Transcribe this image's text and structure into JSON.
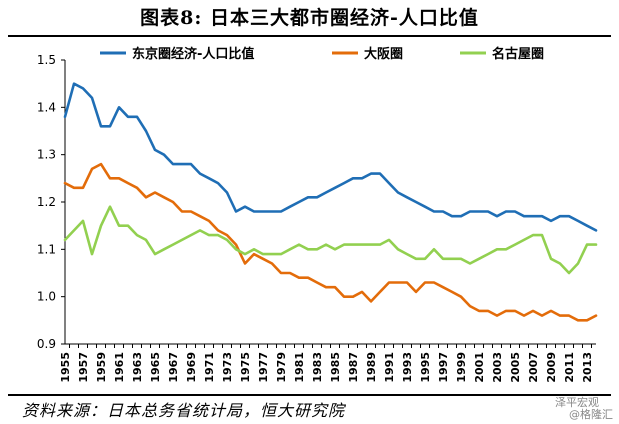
{
  "header": {
    "title": "图表8:  日本三大都市圈经济-人口比值"
  },
  "footer": {
    "source": "资料来源：日本总务省统计局，恒大研究院",
    "watermark_line1": "泽平宏观",
    "watermark_line2": "@格隆汇"
  },
  "chart_data": {
    "type": "line",
    "title": "",
    "xlabel": "",
    "ylabel": "",
    "ylim": [
      0.9,
      1.5
    ],
    "yticks": [
      "0.9",
      "1.0",
      "1.1",
      "1.2",
      "1.3",
      "1.4",
      "1.5"
    ],
    "xlim": [
      1955,
      2014
    ],
    "xticks": [
      "1955",
      "1957",
      "1959",
      "1961",
      "1963",
      "1965",
      "1967",
      "1969",
      "1971",
      "1973",
      "1975",
      "1977",
      "1979",
      "1981",
      "1983",
      "1985",
      "1987",
      "1989",
      "1991",
      "1993",
      "1995",
      "1997",
      "1999",
      "2001",
      "2003",
      "2005",
      "2007",
      "2009",
      "2011",
      "2013"
    ],
    "grid": false,
    "legend": "top",
    "series": [
      {
        "name": "东京圈经济-人口比值",
        "color": "#1F6EB5",
        "x": [
          1955,
          1956,
          1957,
          1958,
          1959,
          1960,
          1961,
          1962,
          1963,
          1964,
          1965,
          1966,
          1967,
          1968,
          1969,
          1970,
          1971,
          1972,
          1973,
          1974,
          1975,
          1976,
          1977,
          1978,
          1979,
          1980,
          1981,
          1982,
          1983,
          1984,
          1985,
          1986,
          1987,
          1988,
          1989,
          1990,
          1991,
          1992,
          1993,
          1994,
          1995,
          1996,
          1997,
          1998,
          1999,
          2000,
          2001,
          2002,
          2003,
          2004,
          2005,
          2006,
          2007,
          2008,
          2009,
          2010,
          2011,
          2012,
          2013,
          2014
        ],
        "values": [
          1.38,
          1.45,
          1.44,
          1.42,
          1.36,
          1.36,
          1.4,
          1.38,
          1.38,
          1.35,
          1.31,
          1.3,
          1.28,
          1.28,
          1.28,
          1.26,
          1.25,
          1.24,
          1.22,
          1.18,
          1.19,
          1.18,
          1.18,
          1.18,
          1.18,
          1.19,
          1.2,
          1.21,
          1.21,
          1.22,
          1.23,
          1.24,
          1.25,
          1.25,
          1.26,
          1.26,
          1.24,
          1.22,
          1.21,
          1.2,
          1.19,
          1.18,
          1.18,
          1.17,
          1.17,
          1.18,
          1.18,
          1.18,
          1.17,
          1.18,
          1.18,
          1.17,
          1.17,
          1.17,
          1.16,
          1.17,
          1.17,
          1.16,
          1.15,
          1.14
        ]
      },
      {
        "name": "大阪圈",
        "color": "#E36C0A",
        "x": [
          1955,
          1956,
          1957,
          1958,
          1959,
          1960,
          1961,
          1962,
          1963,
          1964,
          1965,
          1966,
          1967,
          1968,
          1969,
          1970,
          1971,
          1972,
          1973,
          1974,
          1975,
          1976,
          1977,
          1978,
          1979,
          1980,
          1981,
          1982,
          1983,
          1984,
          1985,
          1986,
          1987,
          1988,
          1989,
          1990,
          1991,
          1992,
          1993,
          1994,
          1995,
          1996,
          1997,
          1998,
          1999,
          2000,
          2001,
          2002,
          2003,
          2004,
          2005,
          2006,
          2007,
          2008,
          2009,
          2010,
          2011,
          2012,
          2013,
          2014
        ],
        "values": [
          1.24,
          1.23,
          1.23,
          1.27,
          1.28,
          1.25,
          1.25,
          1.24,
          1.23,
          1.21,
          1.22,
          1.21,
          1.2,
          1.18,
          1.18,
          1.17,
          1.16,
          1.14,
          1.13,
          1.11,
          1.07,
          1.09,
          1.08,
          1.07,
          1.05,
          1.05,
          1.04,
          1.04,
          1.03,
          1.02,
          1.02,
          1.0,
          1.0,
          1.01,
          0.99,
          1.01,
          1.03,
          1.03,
          1.03,
          1.01,
          1.03,
          1.03,
          1.02,
          1.01,
          1.0,
          0.98,
          0.97,
          0.97,
          0.96,
          0.97,
          0.97,
          0.96,
          0.97,
          0.96,
          0.97,
          0.96,
          0.96,
          0.95,
          0.95,
          0.96
        ]
      },
      {
        "name": "名古屋圈",
        "color": "#92D050",
        "x": [
          1955,
          1956,
          1957,
          1958,
          1959,
          1960,
          1961,
          1962,
          1963,
          1964,
          1965,
          1966,
          1967,
          1968,
          1969,
          1970,
          1971,
          1972,
          1973,
          1974,
          1975,
          1976,
          1977,
          1978,
          1979,
          1980,
          1981,
          1982,
          1983,
          1984,
          1985,
          1986,
          1987,
          1988,
          1989,
          1990,
          1991,
          1992,
          1993,
          1994,
          1995,
          1996,
          1997,
          1998,
          1999,
          2000,
          2001,
          2002,
          2003,
          2004,
          2005,
          2006,
          2007,
          2008,
          2009,
          2010,
          2011,
          2012,
          2013,
          2014
        ],
        "values": [
          1.12,
          1.14,
          1.16,
          1.09,
          1.15,
          1.19,
          1.15,
          1.15,
          1.13,
          1.12,
          1.09,
          1.1,
          1.11,
          1.12,
          1.13,
          1.14,
          1.13,
          1.13,
          1.12,
          1.1,
          1.09,
          1.1,
          1.09,
          1.09,
          1.09,
          1.1,
          1.11,
          1.1,
          1.1,
          1.11,
          1.1,
          1.11,
          1.11,
          1.11,
          1.11,
          1.11,
          1.12,
          1.1,
          1.09,
          1.08,
          1.08,
          1.1,
          1.08,
          1.08,
          1.08,
          1.07,
          1.08,
          1.09,
          1.1,
          1.1,
          1.11,
          1.12,
          1.13,
          1.13,
          1.08,
          1.07,
          1.05,
          1.07,
          1.11,
          1.11
        ]
      }
    ]
  }
}
